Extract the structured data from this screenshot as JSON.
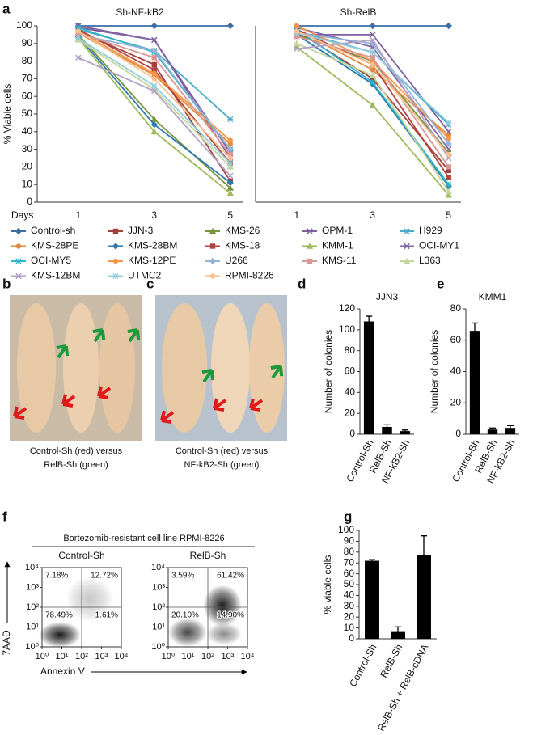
{
  "panel_labels": [
    "a",
    "b",
    "c",
    "d",
    "e",
    "f",
    "g"
  ],
  "photos": [
    {
      "caption": [
        "Control-Sh (red) versus",
        "RelB-Sh (green)"
      ]
    },
    {
      "caption": [
        "Control-Sh (red) versus",
        "NF-kB2-Sh (green)"
      ]
    }
  ],
  "flow_title": "Bortezomib-resistant cell line RPMI-8226",
  "chart_data": [
    {
      "type": "line",
      "title": "Sh-NF-kB2",
      "ylabel": "% Viable cells",
      "xlabel": "Days",
      "categories": [
        "1",
        "3",
        "5"
      ],
      "ylim": [
        0,
        100
      ],
      "yticks": [
        0,
        10,
        20,
        30,
        40,
        50,
        60,
        70,
        80,
        90,
        100
      ],
      "series": [
        {
          "name": "Control-sh",
          "color": "#3a6ea5",
          "values": [
            100,
            100,
            100
          ]
        },
        {
          "name": "JJN-3",
          "color": "#a0413c",
          "values": [
            97,
            78,
            12
          ]
        },
        {
          "name": "KMS-26",
          "color": "#77933c",
          "values": [
            95,
            47,
            8
          ]
        },
        {
          "name": "OPM-1",
          "color": "#7f5fa0",
          "values": [
            99,
            92,
            25
          ]
        },
        {
          "name": "H929",
          "color": "#4bacc6",
          "values": [
            98,
            86,
            47
          ]
        },
        {
          "name": "KMS-28PE",
          "color": "#e08a3c",
          "values": [
            96,
            72,
            33
          ]
        },
        {
          "name": "KMS-28BM",
          "color": "#2f7ab0",
          "values": [
            94,
            44,
            11
          ]
        },
        {
          "name": "KMS-18",
          "color": "#b0443f",
          "values": [
            98,
            75,
            22
          ]
        },
        {
          "name": "KMM-1",
          "color": "#9bbb59",
          "values": [
            93,
            40,
            5
          ]
        },
        {
          "name": "OCI-MY1",
          "color": "#8064a2",
          "values": [
            100,
            92,
            28
          ]
        },
        {
          "name": "OCI-MY5",
          "color": "#31b5c8",
          "values": [
            99,
            85,
            30
          ]
        },
        {
          "name": "KMS-12PE",
          "color": "#f79646",
          "values": [
            97,
            73,
            35
          ]
        },
        {
          "name": "U266",
          "color": "#95b3d7",
          "values": [
            95,
            86,
            30
          ]
        },
        {
          "name": "KMS-11",
          "color": "#d99694",
          "values": [
            96,
            82,
            27
          ]
        },
        {
          "name": "L363",
          "color": "#c3d69b",
          "values": [
            92,
            64,
            20
          ]
        },
        {
          "name": "KMS-12BM",
          "color": "#b3a2c7",
          "values": [
            82,
            63,
            15
          ]
        },
        {
          "name": "UTMC2",
          "color": "#93cddd",
          "values": [
            93,
            66,
            22
          ]
        },
        {
          "name": "RPMI-8226",
          "color": "#fac090",
          "values": [
            97,
            70,
            25
          ]
        }
      ]
    },
    {
      "type": "line",
      "title": "Sh-RelB",
      "categories": [
        "1",
        "3",
        "5"
      ],
      "ylim": [
        0,
        100
      ],
      "series": [
        {
          "color": "#3a6ea5",
          "values": [
            100,
            100,
            100
          ]
        },
        {
          "color": "#a0413c",
          "values": [
            97,
            70,
            18
          ]
        },
        {
          "color": "#77933c",
          "values": [
            95,
            80,
            28
          ]
        },
        {
          "color": "#7f5fa0",
          "values": [
            95,
            95,
            40
          ]
        },
        {
          "color": "#4bacc6",
          "values": [
            97,
            85,
            44
          ]
        },
        {
          "color": "#e08a3c",
          "values": [
            98,
            75,
            38
          ]
        },
        {
          "color": "#2f7ab0",
          "values": [
            95,
            67,
            9
          ]
        },
        {
          "color": "#b0443f",
          "values": [
            98,
            78,
            14
          ]
        },
        {
          "color": "#9bbb59",
          "values": [
            88,
            55,
            4
          ]
        },
        {
          "color": "#8064a2",
          "values": [
            99,
            88,
            30
          ]
        },
        {
          "color": "#31b5c8",
          "values": [
            98,
            68,
            10
          ]
        },
        {
          "color": "#f79646",
          "values": [
            100,
            80,
            36
          ]
        },
        {
          "color": "#95b3d7",
          "values": [
            96,
            90,
            33
          ]
        },
        {
          "color": "#d99694",
          "values": [
            94,
            82,
            20
          ]
        },
        {
          "color": "#c3d69b",
          "values": [
            90,
            72,
            6
          ]
        },
        {
          "color": "#b3a2c7",
          "values": [
            87,
            92,
            25
          ]
        },
        {
          "color": "#93cddd",
          "values": [
            96,
            85,
            45
          ]
        },
        {
          "color": "#fac090",
          "values": [
            97,
            78,
            27
          ]
        }
      ]
    },
    {
      "type": "bar",
      "title": "JJN3",
      "ylabel": "Number of colonies",
      "categories": [
        "Control-Sh",
        "RelB-Sh",
        "NF-kB2-Sh"
      ],
      "values": [
        108,
        7,
        3
      ],
      "errors": [
        5,
        2,
        1
      ],
      "color": "#000000",
      "ylim": [
        0,
        120
      ],
      "yticks": [
        0,
        20,
        40,
        60,
        80,
        100,
        120
      ]
    },
    {
      "type": "bar",
      "title": "KMM1",
      "ylabel": "Number of colonies",
      "categories": [
        "Control-Sh",
        "RelB-Sh",
        "NF-kB2-Sh"
      ],
      "values": [
        66,
        3,
        4
      ],
      "errors": [
        5,
        1,
        1.5
      ],
      "color": "#000000",
      "ylim": [
        0,
        80
      ],
      "yticks": [
        0,
        20,
        40,
        60,
        80
      ]
    },
    {
      "type": "bar",
      "ylabel": "% viable cells",
      "categories": [
        "Control-Sh",
        "RelB-Sh",
        "RelB-Sh + RelB-cDNA"
      ],
      "values": [
        72,
        7,
        77
      ],
      "errors": [
        1,
        4,
        18
      ],
      "color": "#000000",
      "ylim": [
        0,
        100
      ],
      "yticks": [
        0,
        10,
        20,
        30,
        40,
        50,
        60,
        70,
        80,
        90,
        100
      ]
    },
    {
      "type": "flow",
      "title": "Control-Sh",
      "xlabel": "Annexin V",
      "ylabel": "7AAD",
      "log": true,
      "xlim": [
        1,
        10000
      ],
      "ylim": [
        1,
        10000
      ],
      "xticks": [
        {
          "value": 1,
          "label": "10⁰"
        },
        {
          "value": 10,
          "label": "10¹"
        },
        {
          "value": 100,
          "label": "10²"
        },
        {
          "value": 1000,
          "label": "10³"
        },
        {
          "value": 10000,
          "label": "10⁴"
        }
      ],
      "yticks": [
        {
          "value": 1,
          "label": "10⁰"
        },
        {
          "value": 10,
          "label": "10¹"
        },
        {
          "value": 100,
          "label": "10²"
        },
        {
          "value": 1000,
          "label": "10³"
        },
        {
          "value": 10000,
          "label": "10⁴"
        }
      ],
      "quadrant_labels": [
        "7.18%",
        "12.72%",
        "78.49%",
        "1.61%"
      ]
    },
    {
      "type": "flow",
      "title": "RelB-Sh",
      "log": true,
      "xlim": [
        1,
        10000
      ],
      "ylim": [
        1,
        10000
      ],
      "xticks": [
        {
          "value": 1,
          "label": "10⁰"
        },
        {
          "value": 10,
          "label": "10¹"
        },
        {
          "value": 100,
          "label": "10²"
        },
        {
          "value": 1000,
          "label": "10³"
        },
        {
          "value": 10000,
          "label": "10⁴"
        }
      ],
      "yticks": [
        {
          "value": 1,
          "label": "10⁰"
        },
        {
          "value": 10,
          "label": "10¹"
        },
        {
          "value": 100,
          "label": "10²"
        },
        {
          "value": 1000,
          "label": "10³"
        },
        {
          "value": 10000,
          "label": "10⁴"
        }
      ],
      "quadrant_labels": [
        "3.59%",
        "61.42%",
        "20.10%",
        "14.90%"
      ]
    }
  ]
}
